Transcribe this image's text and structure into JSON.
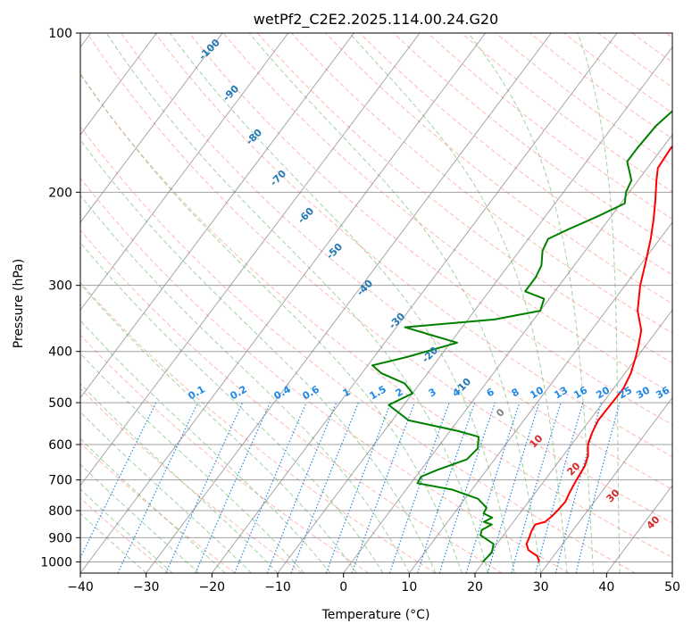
{
  "chart_data": {
    "type": "line",
    "title": "wetPf2_C2E2.2025.114.00.24.G20",
    "xlabel": "Temperature (°C)",
    "ylabel": "Pressure (hPa)",
    "xlim": [
      -40,
      50
    ],
    "ylim": [
      1050,
      100
    ],
    "y_scale": "log",
    "grid": true,
    "x_ticks": [
      "−40",
      "−30",
      "−20",
      "−10",
      "0",
      "10",
      "20",
      "30",
      "40",
      "50"
    ],
    "x_tick_values": [
      -40,
      -30,
      -20,
      -10,
      0,
      10,
      20,
      30,
      40,
      50
    ],
    "y_ticks": [
      "100",
      "200",
      "300",
      "400",
      "500",
      "600",
      "700",
      "800",
      "900",
      "1000"
    ],
    "y_tick_values": [
      100,
      200,
      300,
      400,
      500,
      600,
      700,
      800,
      900,
      1000
    ],
    "series": [
      {
        "role": "temperature",
        "color": "#ff0000",
        "points": [
          [
            28.5,
            1000
          ],
          [
            27.5,
            975
          ],
          [
            25.5,
            950
          ],
          [
            24.5,
            925
          ],
          [
            24.2,
            900
          ],
          [
            23.8,
            875
          ],
          [
            23.6,
            850
          ],
          [
            24.8,
            840
          ],
          [
            25.2,
            820
          ],
          [
            25.4,
            800
          ],
          [
            25.6,
            770
          ],
          [
            25.2,
            740
          ],
          [
            24.8,
            700
          ],
          [
            24.5,
            660
          ],
          [
            23.8,
            630
          ],
          [
            22.5,
            600
          ],
          [
            21.8,
            570
          ],
          [
            21.3,
            540
          ],
          [
            21.4,
            500
          ],
          [
            21.5,
            470
          ],
          [
            20.9,
            440
          ],
          [
            19.8,
            410
          ],
          [
            18.9,
            390
          ],
          [
            17.6,
            365
          ],
          [
            14.8,
            335
          ],
          [
            12.3,
            300
          ],
          [
            10.4,
            270
          ],
          [
            8.6,
            245
          ],
          [
            6.8,
            225
          ],
          [
            5.0,
            208
          ],
          [
            2.8,
            190
          ],
          [
            1.6,
            180
          ],
          [
            1.3,
            165
          ],
          [
            1.8,
            150
          ],
          [
            1.8,
            135
          ],
          [
            1.4,
            122
          ],
          [
            1.8,
            112
          ],
          [
            2.6,
            100
          ]
        ]
      },
      {
        "role": "dewpoint",
        "color": "#008000",
        "points": [
          [
            19.9,
            1000
          ],
          [
            20.2,
            960
          ],
          [
            19.5,
            925
          ],
          [
            16.5,
            890
          ],
          [
            16.1,
            870
          ],
          [
            17.0,
            850
          ],
          [
            15.5,
            840
          ],
          [
            16.3,
            825
          ],
          [
            14.5,
            810
          ],
          [
            14.3,
            790
          ],
          [
            12.0,
            760
          ],
          [
            7.0,
            730
          ],
          [
            1.0,
            710
          ],
          [
            0.8,
            690
          ],
          [
            2.5,
            670
          ],
          [
            5.8,
            640
          ],
          [
            6.2,
            610
          ],
          [
            5.0,
            580
          ],
          [
            1.0,
            565
          ],
          [
            -7.5,
            540
          ],
          [
            -10.2,
            520
          ],
          [
            -12.3,
            505
          ],
          [
            -10.0,
            480
          ],
          [
            -12.3,
            460
          ],
          [
            -17.0,
            440
          ],
          [
            -19.3,
            425
          ],
          [
            -15.0,
            410
          ],
          [
            -9.0,
            385
          ],
          [
            -14.0,
            372
          ],
          [
            -18.7,
            360
          ],
          [
            -6.0,
            348
          ],
          [
            0.0,
            335
          ],
          [
            -0.8,
            318
          ],
          [
            -4.5,
            308
          ],
          [
            -4.5,
            290
          ],
          [
            -5.0,
            275
          ],
          [
            -6.5,
            258
          ],
          [
            -7.0,
            245
          ],
          [
            -5.0,
            235
          ],
          [
            -2.0,
            222
          ],
          [
            0.6,
            210
          ],
          [
            -0.5,
            200
          ],
          [
            -1.0,
            190
          ],
          [
            -3.8,
            175
          ],
          [
            -3.8,
            165
          ],
          [
            -3.5,
            150
          ],
          [
            -2.2,
            135
          ],
          [
            -1.8,
            123
          ],
          [
            0.1,
            108
          ],
          [
            0.6,
            100
          ]
        ]
      }
    ],
    "dry_adiabat_labels": [
      "-100",
      "-90",
      "-80",
      "-70",
      "-60",
      "-50",
      "-40",
      "-30",
      "-20",
      "-10"
    ],
    "mixing_ratio_labels": [
      "0.1",
      "0.2",
      "0.4",
      "0.6",
      "1",
      "1.5",
      "2",
      "3",
      "4",
      "6",
      "8",
      "10",
      "13",
      "16",
      "20",
      "25",
      "30",
      "36"
    ],
    "moist_adiabat_labels": [
      "0",
      "10",
      "20",
      "30",
      "40"
    ],
    "colors": {
      "dry_adiabat": "#fa8072",
      "moist_adiabat": "#2ca02c",
      "mixing_ratio": "#1e88e5",
      "isotherm": "#808080",
      "dry_label": "#1f77b4",
      "moist_label_cold": "#808080",
      "moist_label_warm": "#d62728"
    }
  }
}
